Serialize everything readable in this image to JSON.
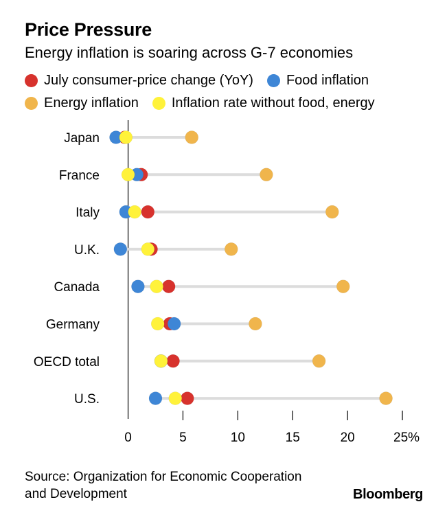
{
  "title": "Price Pressure",
  "subtitle": "Energy inflation is soaring across G-7 economies",
  "legend": [
    {
      "label": "July consumer-price change (YoY)",
      "color": "#d7322d"
    },
    {
      "label": "Food inflation",
      "color": "#3e86d6"
    },
    {
      "label": "Energy inflation",
      "color": "#f0b54c"
    },
    {
      "label": "Inflation rate without food, energy",
      "color": "#fff23a"
    }
  ],
  "chart_data": {
    "type": "scatter",
    "categories": [
      "Japan",
      "France",
      "Italy",
      "U.K.",
      "Canada",
      "Germany",
      "OECD total",
      "U.S."
    ],
    "series": [
      {
        "name": "July consumer-price change (YoY)",
        "color": "#d7322d",
        "values": [
          -0.3,
          1.2,
          1.8,
          2.1,
          3.7,
          3.8,
          4.1,
          5.4
        ]
      },
      {
        "name": "Food inflation",
        "color": "#3e86d6",
        "values": [
          -1.1,
          0.8,
          -0.2,
          -0.7,
          0.9,
          4.2,
          3.0,
          2.5
        ]
      },
      {
        "name": "Energy inflation",
        "color": "#f0b54c",
        "values": [
          5.8,
          12.6,
          18.6,
          9.4,
          19.6,
          11.6,
          17.4,
          23.5
        ]
      },
      {
        "name": "Inflation rate without food, energy",
        "color": "#fff23a",
        "values": [
          -0.2,
          0.0,
          0.6,
          1.8,
          2.6,
          2.7,
          3.0,
          4.3
        ]
      }
    ],
    "xticks": [
      "0",
      "5",
      "10",
      "15",
      "20",
      "25%"
    ],
    "xtick_values": [
      0,
      5,
      10,
      15,
      20,
      25
    ],
    "xlim": [
      -2.6,
      26.5
    ],
    "range_line_color": "#dcdcdc",
    "zero_line": true,
    "grid": false,
    "legend_position": "top"
  },
  "source": "Source: Organization for Economic Cooperation and Development",
  "brand": "Bloomberg"
}
